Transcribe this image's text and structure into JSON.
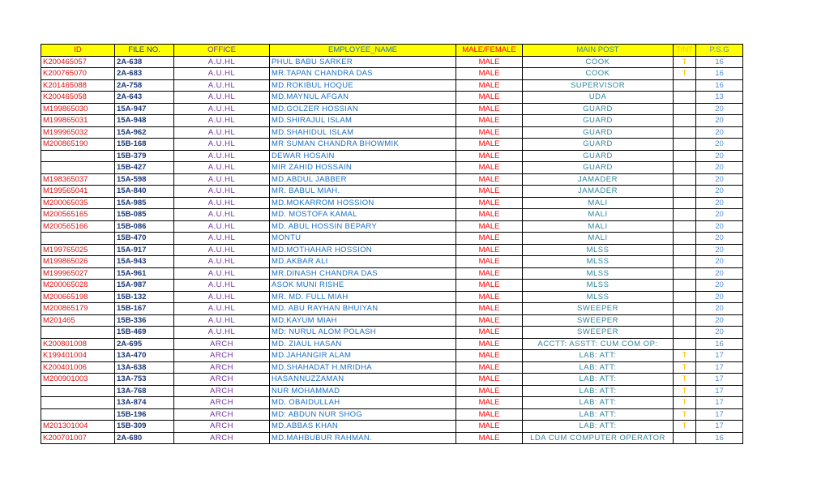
{
  "headers": [
    "ID",
    "FILE NO.",
    "OFFICE",
    "EMPLOYEE_NAME",
    "MALE/FEMALE",
    "MAIN POST",
    "T/NT",
    "P.S.G"
  ],
  "header_colors": [
    "#e01010",
    "#1f3a78",
    "#7030a0",
    "#1a6fc4",
    "#ff0000",
    "#31859c",
    "#ffc000",
    "#558ed5"
  ],
  "rows": [
    [
      "K200465057",
      "2A-638",
      "A.U.HL",
      "PHUL BABU SARKER",
      "MALE",
      "COOK",
      "T",
      "16"
    ],
    [
      "K200765070",
      "2A-683",
      "A.U.HL",
      "MR.TAPAN CHANDRA DAS",
      "MALE",
      "COOK",
      "T",
      "16"
    ],
    [
      "K201465088",
      "2A-758",
      "A.U.HL",
      "MD.ROKIBUL HOQUE",
      "MALE",
      "SUPERVISOR",
      "",
      "16"
    ],
    [
      "K200465058",
      "2A-643",
      "A.U.HL",
      "MD.MAYNUL AFGAN",
      "MALE",
      "UDA",
      "",
      "13"
    ],
    [
      "M199865030",
      "15A-947",
      "A.U.HL",
      "MD.GOLZER HOSSIAN",
      "MALE",
      "GUARD",
      "",
      "20"
    ],
    [
      "M199865031",
      "15A-948",
      "A.U.HL",
      "MD.SHIRAJUL ISLAM",
      "MALE",
      "GUARD",
      "",
      "20"
    ],
    [
      "M199965032",
      "15A-962",
      "A.U.HL",
      "MD.SHAHIDUL ISLAM",
      "MALE",
      "GUARD",
      "",
      "20"
    ],
    [
      "M200865190",
      "15B-168",
      "A.U.HL",
      "MR SUMAN CHANDRA BHOWMIK",
      "MALE",
      "GUARD",
      "",
      "20"
    ],
    [
      "",
      "15B-379",
      "A.U.HL",
      "DEWAR HOSAIN",
      "MALE",
      "GUARD",
      "",
      "20"
    ],
    [
      "",
      "15B-427",
      "A.U.HL",
      "MIR ZAHID HOSSAIN",
      "MALE",
      "GUARD",
      "",
      "20"
    ],
    [
      "M198365037",
      "15A-598",
      "A.U.HL",
      "MD.ABDUL JABBER",
      "MALE",
      "JAMADER",
      "",
      "20"
    ],
    [
      "M199565041",
      "15A-840",
      "A.U.HL",
      "MR. BABUL MIAH.",
      "MALE",
      "JAMADER",
      "",
      "20"
    ],
    [
      "M200065035",
      "15A-985",
      "A.U.HL",
      "MD.MOKARROM HOSSION",
      "MALE",
      "MALI",
      "",
      "20"
    ],
    [
      "M200565165",
      "15B-085",
      "A.U.HL",
      "MD. MOSTOFA KAMAL",
      "MALE",
      "MALI",
      "",
      "20"
    ],
    [
      "M200565166",
      "15B-086",
      "A.U.HL",
      "MD. ABUL HOSSIN BEPARY",
      "MALE",
      "MALI",
      "",
      "20"
    ],
    [
      "",
      "15B-470",
      "A.U.HL",
      "MONTU",
      "MALE",
      "MALI",
      "",
      "20"
    ],
    [
      "M199765025",
      "15A-917",
      "A.U.HL",
      "MD.MOTHAHAR HOSSION",
      "MALE",
      "MLSS",
      "",
      "20"
    ],
    [
      "M199865026",
      "15A-943",
      "A.U.HL",
      "MD.AKBAR ALI",
      "MALE",
      "MLSS",
      "",
      "20"
    ],
    [
      "M199965027",
      "15A-961",
      "A.U.HL",
      "MR.DINASH CHANDRA DAS",
      "MALE",
      "MLSS",
      "",
      "20"
    ],
    [
      "M200065028",
      "15A-987",
      "A.U.HL",
      "ASOK MUNI RISHE",
      "MALE",
      "MLSS",
      "",
      "20"
    ],
    [
      "M200665198",
      "15B-132",
      "A.U.HL",
      "MR. MD. FULL MIAH",
      "MALE",
      "MLSS",
      "",
      "20"
    ],
    [
      "M200865179",
      "15B-167",
      "A.U.HL",
      "MD. ABU RAYHAN BHUIYAN",
      "MALE",
      "SWEEPER",
      "",
      "20"
    ],
    [
      "M201465",
      "15B-336",
      "A.U.HL",
      "MD.KAYUM MIAH",
      "MALE",
      "SWEEPER",
      "",
      "20"
    ],
    [
      "",
      "15B-469",
      "A.U.HL",
      "MD: NURUL ALOM POLASH",
      "MALE",
      "SWEEPER",
      "",
      "20"
    ],
    [
      "K200801008",
      "2A-695",
      "ARCH",
      "MD. ZIAUL HASAN",
      "MALE",
      "ACCTT: ASSTT: CUM COM OP:",
      "",
      "16"
    ],
    [
      "K199401004",
      "13A-470",
      "ARCH",
      "MD.JAHANGIR ALAM",
      "MALE",
      "LAB: ATT:",
      "T",
      "17"
    ],
    [
      "K200401006",
      "13A-638",
      "ARCH",
      "MD.SHAHADAT H.MRIDHA",
      "MALE",
      "LAB: ATT:",
      "T",
      "17"
    ],
    [
      "M200901003",
      "13A-753",
      "ARCH",
      "HASANNUZZAMAN",
      "MALE",
      "LAB: ATT:",
      "T",
      "17"
    ],
    [
      "",
      "13A-768",
      "ARCH",
      "NUR MOHAMMAD",
      "MALE",
      "LAB: ATT:",
      "T",
      "17"
    ],
    [
      "",
      "13A-874",
      "ARCH",
      "MD. OBAIDULLAH",
      "MALE",
      "LAB: ATT:",
      "T",
      "17"
    ],
    [
      "",
      "15B-196",
      "ARCH",
      "MD: ABDUN NUR SHOG",
      "MALE",
      "LAB: ATT:",
      "T",
      "17"
    ],
    [
      "M201301004",
      "15B-309",
      "ARCH",
      "MD.ABBAS KHAN",
      "MALE",
      "LAB: ATT:",
      "T",
      "17"
    ],
    [
      "K200701007",
      "2A-680",
      "ARCH",
      "MD.MAHBUBUR RAHMAN.",
      "MALE",
      "LDA CUM COMPUTER OPERATOR",
      "",
      "16"
    ]
  ]
}
